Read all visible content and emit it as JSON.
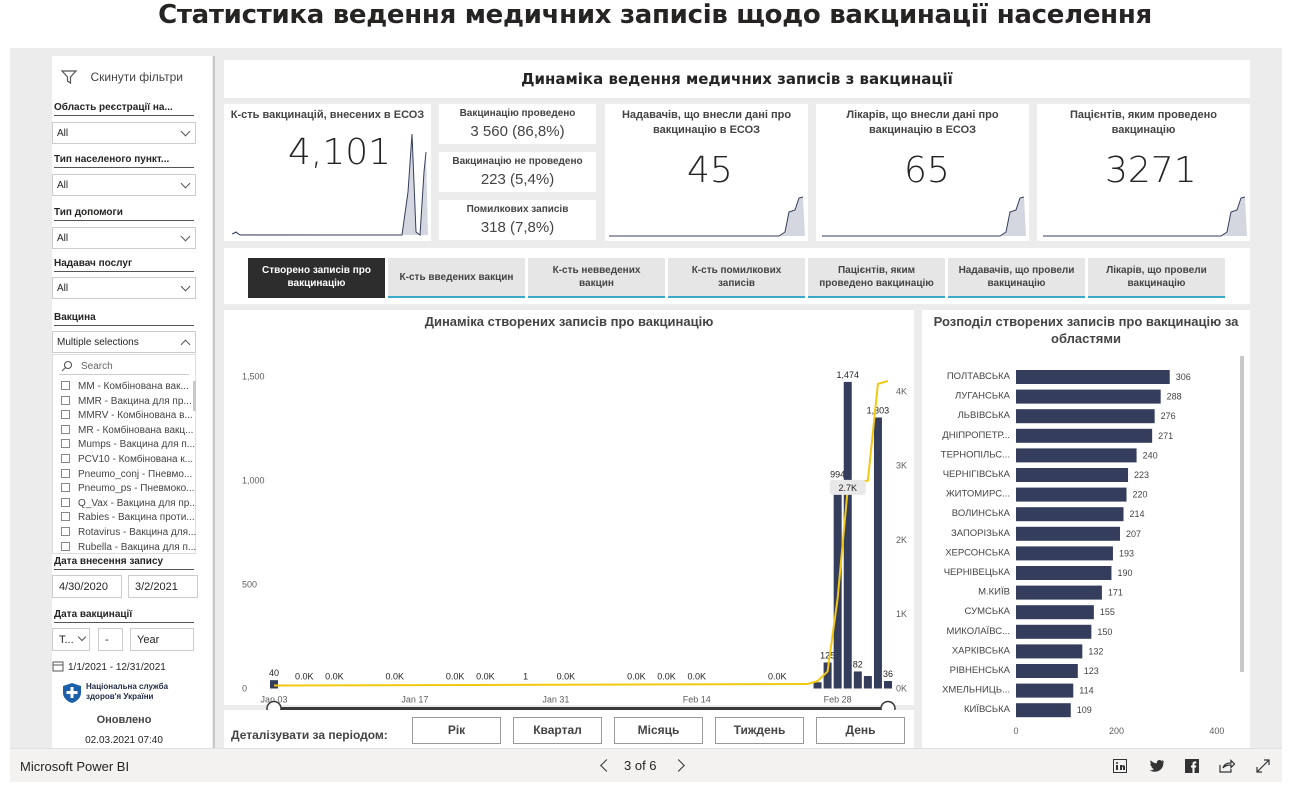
{
  "page_title": "Статистика ведення медичних записів щодо вакцинації населення",
  "filters": {
    "reset_label": "Скинути фільтри",
    "groups": [
      {
        "label": "Область реєстрації на...",
        "value": "All"
      },
      {
        "label": "Тип населеного пункт...",
        "value": "All"
      },
      {
        "label": "Тип допомоги",
        "value": "All"
      },
      {
        "label": "Надавач послуг",
        "value": "All"
      }
    ],
    "vaccine": {
      "label": "Вакцина",
      "value": "Multiple selections",
      "search_placeholder": "Search",
      "items": [
        "MM - Комбінована вак...",
        "MMR - Вакцина для пр...",
        "MMRV - Комбінована в...",
        "MR - Комбінована вакц...",
        "Mumps - Вакцина для п...",
        "PCV10 - Комбінована к...",
        "Pneumo_conj - Пневмо...",
        "Pneumo_ps - Пневмоко...",
        "Q_Vax - Вакцина для пр...",
        "Rabies - Вакцина проти...",
        "Rotavirus - Вакцина для...",
        "Rubella - Вакцина для п..."
      ]
    },
    "entry_date": {
      "label": "Дата внесення запису",
      "from": "4/30/2020",
      "to": "3/2/2021"
    },
    "vaccination_date": {
      "label": "Дата вакцинації",
      "sel1": "T...",
      "sel2": "-",
      "sel3": "Year",
      "range": "1/1/2021 - 12/31/2021"
    },
    "logo_text": "Національна служба здоров'я України",
    "updated_label": "Оновлено",
    "updated_value": "02.03.2021 07:40"
  },
  "main_title": "Динаміка ведення медичних записів з вакцинації",
  "kpis": {
    "total": {
      "title": "К-сть вакцинацій, внесених в ЕСОЗ",
      "value": "4,101"
    },
    "done": {
      "title": "Вакцинацію проведено",
      "value": "3 560 (86,8%)"
    },
    "not_done": {
      "title": "Вакцинацію не проведено",
      "value": "223 (5,4%)"
    },
    "errors": {
      "title": "Помилкових записів",
      "value": "318 (7,8%)"
    },
    "providers": {
      "title": "Надавачів, що внесли дані про вакцинацію в ЕСОЗ",
      "value": "45"
    },
    "doctors": {
      "title": "Лікарів, що внесли дані про вакцинацію в ЕСОЗ",
      "value": "65"
    },
    "patients": {
      "title": "Пацієнтів, яким проведено вакцинацію",
      "value": "3271"
    }
  },
  "tabs": [
    "Створено записів про вакцинацію",
    "К-сть введених вакцин",
    "К-сть невведених вакцин",
    "К-сть помилкових записів",
    "Пацієнтів, яким проведено вакцинацію",
    "Надавачів, що провели вакцинацію",
    "Лікарів, що провели вакцинацію"
  ],
  "period": {
    "label": "Деталізувати за періодом:",
    "buttons": [
      "Рік",
      "Квартал",
      "Місяць",
      "Тиждень",
      "День"
    ]
  },
  "chart_data": [
    {
      "type": "bar",
      "title": "Динаміка створених записів про вакцинацію",
      "x_ticks": [
        "Jan 03",
        "Jan 17",
        "Jan 31",
        "Feb 14",
        "Feb 28"
      ],
      "y_ticks": [
        "0",
        "500",
        "1,000",
        "1,500"
      ],
      "y2_ticks": [
        "0K",
        "1K",
        "2K",
        "3K",
        "4K"
      ],
      "ylim": [
        0,
        1500
      ],
      "y2lim": [
        0,
        4200
      ],
      "bar_color": "#343d5c",
      "line_color": "#f2c811",
      "bars": [
        {
          "day": 0,
          "value": 40,
          "label": "40"
        },
        {
          "day": 54,
          "value": 30
        },
        {
          "day": 55,
          "value": 125,
          "label": "125"
        },
        {
          "day": 56,
          "value": 994,
          "label": "994"
        },
        {
          "day": 57,
          "value": 1474,
          "label": "1,474"
        },
        {
          "day": 58,
          "value": 82,
          "label": "82"
        },
        {
          "day": 59,
          "value": 60
        },
        {
          "day": 60,
          "value": 1303,
          "label": "1,303"
        },
        {
          "day": 61,
          "value": 36,
          "label": "36"
        }
      ],
      "value_labels": [
        {
          "day": 3,
          "text": "0.0K"
        },
        {
          "day": 6,
          "text": "0.0K"
        },
        {
          "day": 12,
          "text": "0.0K"
        },
        {
          "day": 18,
          "text": "0.0K"
        },
        {
          "day": 21,
          "text": "0.0K"
        },
        {
          "day": 25,
          "text": "1"
        },
        {
          "day": 29,
          "text": "0.0K"
        },
        {
          "day": 36,
          "text": "0.0K"
        },
        {
          "day": 39,
          "text": "0.0K"
        },
        {
          "day": 42,
          "text": "0.0K"
        },
        {
          "day": 50,
          "text": "0.0K"
        },
        {
          "day": 57,
          "text": "2.7K"
        }
      ],
      "cumulative": [
        [
          0,
          0.04
        ],
        [
          53,
          0.06
        ],
        [
          54,
          0.1
        ],
        [
          55,
          0.23
        ],
        [
          56,
          1.22
        ],
        [
          57,
          2.69
        ],
        [
          58,
          2.77
        ],
        [
          59,
          2.8
        ],
        [
          60,
          4.1
        ],
        [
          61,
          4.14
        ]
      ]
    },
    {
      "type": "bar",
      "title": "Розподіл створених записів про вакцинацію за областями",
      "bar_color": "#343d5c",
      "x_ticks": [
        "0",
        "200",
        "400"
      ],
      "xlim": [
        0,
        420
      ],
      "categories": [
        "ПОЛТАВСЬКА",
        "ЛУГАНСЬКА",
        "ЛЬВІВСЬКА",
        "ДНІПРОПЕТР...",
        "ТЕРНОПІЛЬС...",
        "ЧЕРНІГІВСЬКА",
        "ЖИТОМИРС...",
        "ВОЛИНСЬКА",
        "ЗАПОРІЗЬКА",
        "ХЕРСОНСЬКА",
        "ЧЕРНІВЕЦЬКА",
        "М.КИЇВ",
        "СУМСЬКА",
        "МИКОЛАЇВС...",
        "ХАРКІВСЬКА",
        "РІВНЕНСЬКА",
        "ХМЕЛЬНИЦЬ...",
        "КИЇВСЬКА"
      ],
      "values": [
        306,
        288,
        276,
        271,
        240,
        223,
        220,
        214,
        207,
        193,
        190,
        171,
        155,
        150,
        132,
        123,
        114,
        109
      ]
    }
  ],
  "bottombar": {
    "brand": "Microsoft Power BI",
    "pager": "3 of 6"
  }
}
